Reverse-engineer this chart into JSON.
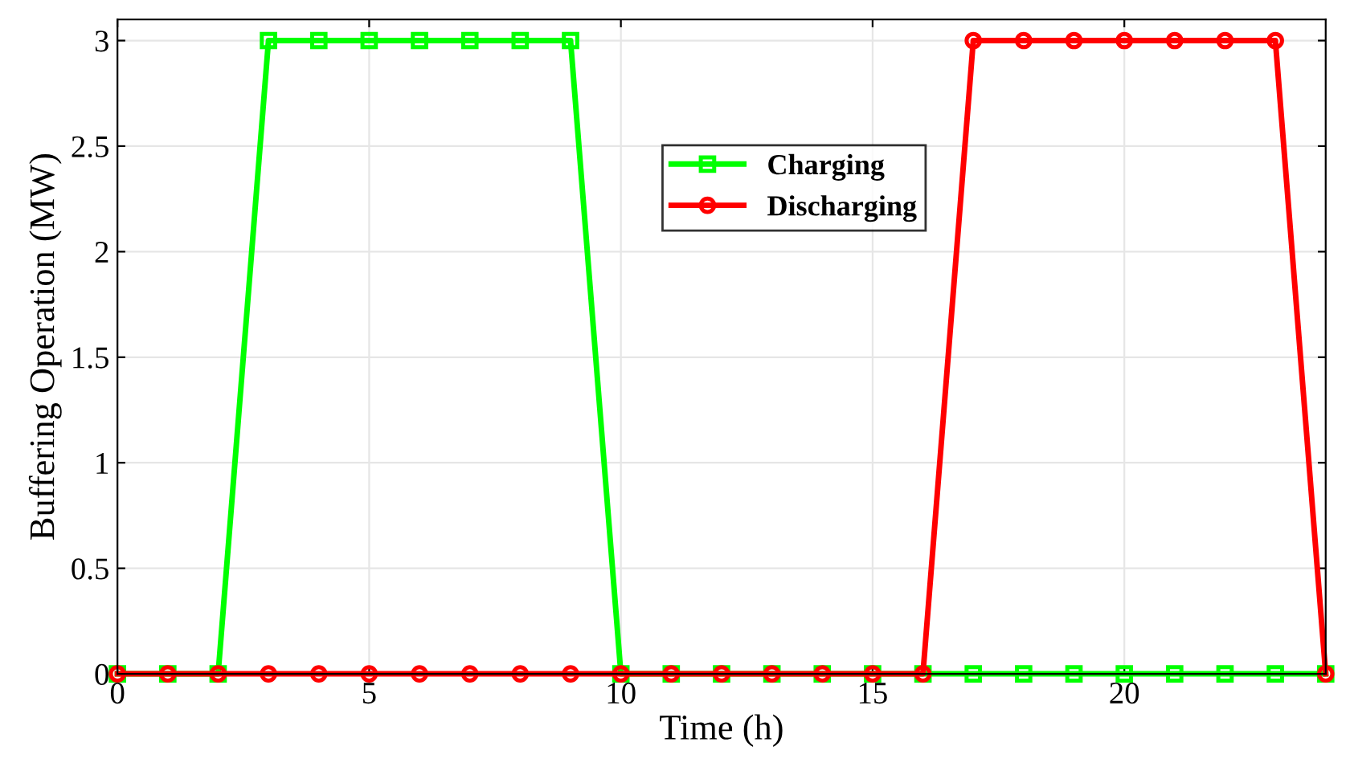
{
  "chart_data": {
    "type": "line",
    "xlabel": "Time (h)",
    "ylabel": "Buffering Operation (MW)",
    "x": [
      0,
      1,
      2,
      3,
      4,
      5,
      6,
      7,
      8,
      9,
      10,
      11,
      12,
      13,
      14,
      15,
      16,
      17,
      18,
      19,
      20,
      21,
      22,
      23,
      24
    ],
    "series": [
      {
        "name": "Charging",
        "color": "#00ff00",
        "marker": "square",
        "values": [
          0,
          0,
          0,
          3,
          3,
          3,
          3,
          3,
          3,
          3,
          0,
          0,
          0,
          0,
          0,
          0,
          0,
          0,
          0,
          0,
          0,
          0,
          0,
          0,
          0
        ]
      },
      {
        "name": "Discharging",
        "color": "#ff0000",
        "marker": "circle",
        "values": [
          0,
          0,
          0,
          0,
          0,
          0,
          0,
          0,
          0,
          0,
          0,
          0,
          0,
          0,
          0,
          0,
          0,
          3,
          3,
          3,
          3,
          3,
          3,
          3,
          0
        ]
      }
    ],
    "xlim": [
      0,
      24
    ],
    "xticks": [
      0,
      5,
      10,
      15,
      20
    ],
    "ylim": [
      0,
      3.1
    ],
    "yticks": [
      0,
      0.5,
      1,
      1.5,
      2,
      2.5,
      3
    ],
    "grid": true,
    "legend": "top",
    "line_style": "solid"
  }
}
